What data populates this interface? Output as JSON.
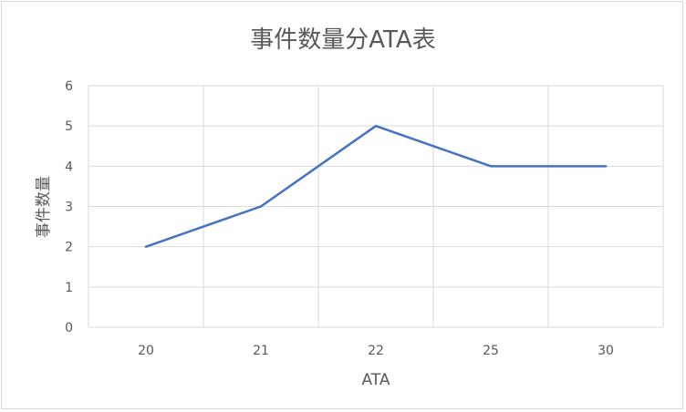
{
  "chart_data": {
    "type": "line",
    "title": "事件数量分ATA表",
    "xlabel": "ATA",
    "ylabel": "事件数量",
    "categories": [
      "20",
      "21",
      "22",
      "25",
      "30"
    ],
    "series": [
      {
        "values": [
          2,
          3,
          5,
          4,
          4
        ]
      }
    ],
    "ylim": [
      0,
      6
    ],
    "yticks": [
      "0",
      "1",
      "2",
      "3",
      "4",
      "5",
      "6"
    ],
    "grid": true,
    "line_color": "#4472c4",
    "grid_color": "#d9d9d9",
    "text_color": "#595959"
  }
}
